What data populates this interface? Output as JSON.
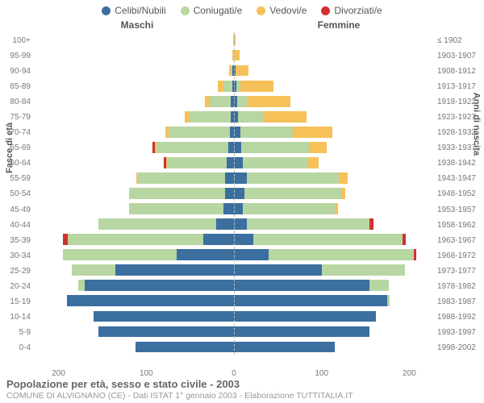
{
  "chart": {
    "type": "population-pyramid",
    "legend": [
      {
        "label": "Celibi/Nubili",
        "color": "#3b6fa0"
      },
      {
        "label": "Coniugati/e",
        "color": "#b8d6a2"
      },
      {
        "label": "Vedovi/e",
        "color": "#f5c158"
      },
      {
        "label": "Divorziati/e",
        "color": "#d22f2f"
      }
    ],
    "header_left": "Maschi",
    "header_right": "Femmine",
    "ylabel_left": "Fasce di età",
    "ylabel_right": "Anni di nascita",
    "x_ticks": [
      200,
      100,
      0,
      100,
      200
    ],
    "x_max": 230,
    "age_labels": [
      "100+",
      "95-99",
      "90-94",
      "85-89",
      "80-84",
      "75-79",
      "70-74",
      "65-69",
      "60-64",
      "55-59",
      "50-54",
      "45-49",
      "40-44",
      "35-39",
      "30-34",
      "25-29",
      "20-24",
      "15-19",
      "10-14",
      "5-9",
      "0-4"
    ],
    "year_labels": [
      "≤ 1902",
      "1903-1907",
      "1908-1912",
      "1913-1917",
      "1918-1922",
      "1923-1927",
      "1928-1932",
      "1933-1937",
      "1938-1942",
      "1943-1947",
      "1948-1952",
      "1953-1957",
      "1958-1962",
      "1963-1967",
      "1968-1972",
      "1973-1977",
      "1978-1982",
      "1983-1987",
      "1988-1992",
      "1993-1997",
      "1998-2002"
    ],
    "rows": [
      {
        "m": {
          "c": 0,
          "g": 0,
          "v": 1,
          "d": 0
        },
        "f": {
          "c": 0,
          "g": 0,
          "v": 2,
          "d": 0
        }
      },
      {
        "m": {
          "c": 0,
          "g": 0,
          "v": 2,
          "d": 0
        },
        "f": {
          "c": 0,
          "g": 0,
          "v": 6,
          "d": 0
        }
      },
      {
        "m": {
          "c": 2,
          "g": 1,
          "v": 3,
          "d": 0
        },
        "f": {
          "c": 2,
          "g": 0,
          "v": 15,
          "d": 0
        }
      },
      {
        "m": {
          "c": 2,
          "g": 10,
          "v": 6,
          "d": 0
        },
        "f": {
          "c": 3,
          "g": 4,
          "v": 38,
          "d": 0
        }
      },
      {
        "m": {
          "c": 4,
          "g": 24,
          "v": 5,
          "d": 0
        },
        "f": {
          "c": 4,
          "g": 12,
          "v": 48,
          "d": 0
        }
      },
      {
        "m": {
          "c": 4,
          "g": 47,
          "v": 5,
          "d": 0
        },
        "f": {
          "c": 5,
          "g": 28,
          "v": 50,
          "d": 0
        }
      },
      {
        "m": {
          "c": 5,
          "g": 70,
          "v": 3,
          "d": 0
        },
        "f": {
          "c": 7,
          "g": 60,
          "v": 45,
          "d": 0
        }
      },
      {
        "m": {
          "c": 6,
          "g": 82,
          "v": 2,
          "d": 3
        },
        "f": {
          "c": 8,
          "g": 78,
          "v": 20,
          "d": 0
        }
      },
      {
        "m": {
          "c": 8,
          "g": 68,
          "v": 1,
          "d": 3
        },
        "f": {
          "c": 10,
          "g": 75,
          "v": 12,
          "d": 0
        }
      },
      {
        "m": {
          "c": 10,
          "g": 100,
          "v": 1,
          "d": 0
        },
        "f": {
          "c": 15,
          "g": 105,
          "v": 10,
          "d": 0
        }
      },
      {
        "m": {
          "c": 10,
          "g": 110,
          "v": 0,
          "d": 0
        },
        "f": {
          "c": 12,
          "g": 110,
          "v": 5,
          "d": 0
        }
      },
      {
        "m": {
          "c": 12,
          "g": 108,
          "v": 0,
          "d": 0
        },
        "f": {
          "c": 10,
          "g": 105,
          "v": 4,
          "d": 0
        }
      },
      {
        "m": {
          "c": 20,
          "g": 135,
          "v": 0,
          "d": 0
        },
        "f": {
          "c": 15,
          "g": 140,
          "v": 0,
          "d": 4
        }
      },
      {
        "m": {
          "c": 35,
          "g": 155,
          "v": 0,
          "d": 5
        },
        "f": {
          "c": 22,
          "g": 170,
          "v": 0,
          "d": 4
        }
      },
      {
        "m": {
          "c": 65,
          "g": 130,
          "v": 0,
          "d": 0
        },
        "f": {
          "c": 40,
          "g": 165,
          "v": 0,
          "d": 3
        }
      },
      {
        "m": {
          "c": 135,
          "g": 50,
          "v": 0,
          "d": 0
        },
        "f": {
          "c": 100,
          "g": 95,
          "v": 0,
          "d": 0
        }
      },
      {
        "m": {
          "c": 170,
          "g": 8,
          "v": 0,
          "d": 0
        },
        "f": {
          "c": 155,
          "g": 22,
          "v": 0,
          "d": 0
        }
      },
      {
        "m": {
          "c": 190,
          "g": 0,
          "v": 0,
          "d": 0
        },
        "f": {
          "c": 175,
          "g": 3,
          "v": 0,
          "d": 0
        }
      },
      {
        "m": {
          "c": 160,
          "g": 0,
          "v": 0,
          "d": 0
        },
        "f": {
          "c": 162,
          "g": 0,
          "v": 0,
          "d": 0
        }
      },
      {
        "m": {
          "c": 155,
          "g": 0,
          "v": 0,
          "d": 0
        },
        "f": {
          "c": 155,
          "g": 0,
          "v": 0,
          "d": 0
        }
      },
      {
        "m": {
          "c": 112,
          "g": 0,
          "v": 0,
          "d": 0
        },
        "f": {
          "c": 115,
          "g": 0,
          "v": 0,
          "d": 0
        }
      }
    ],
    "footer_title": "Popolazione per età, sesso e stato civile - 2003",
    "footer_sub": "COMUNE DI ALVIGNANO (CE) - Dati ISTAT 1° gennaio 2003 - Elaborazione TUTTITALIA.IT"
  }
}
